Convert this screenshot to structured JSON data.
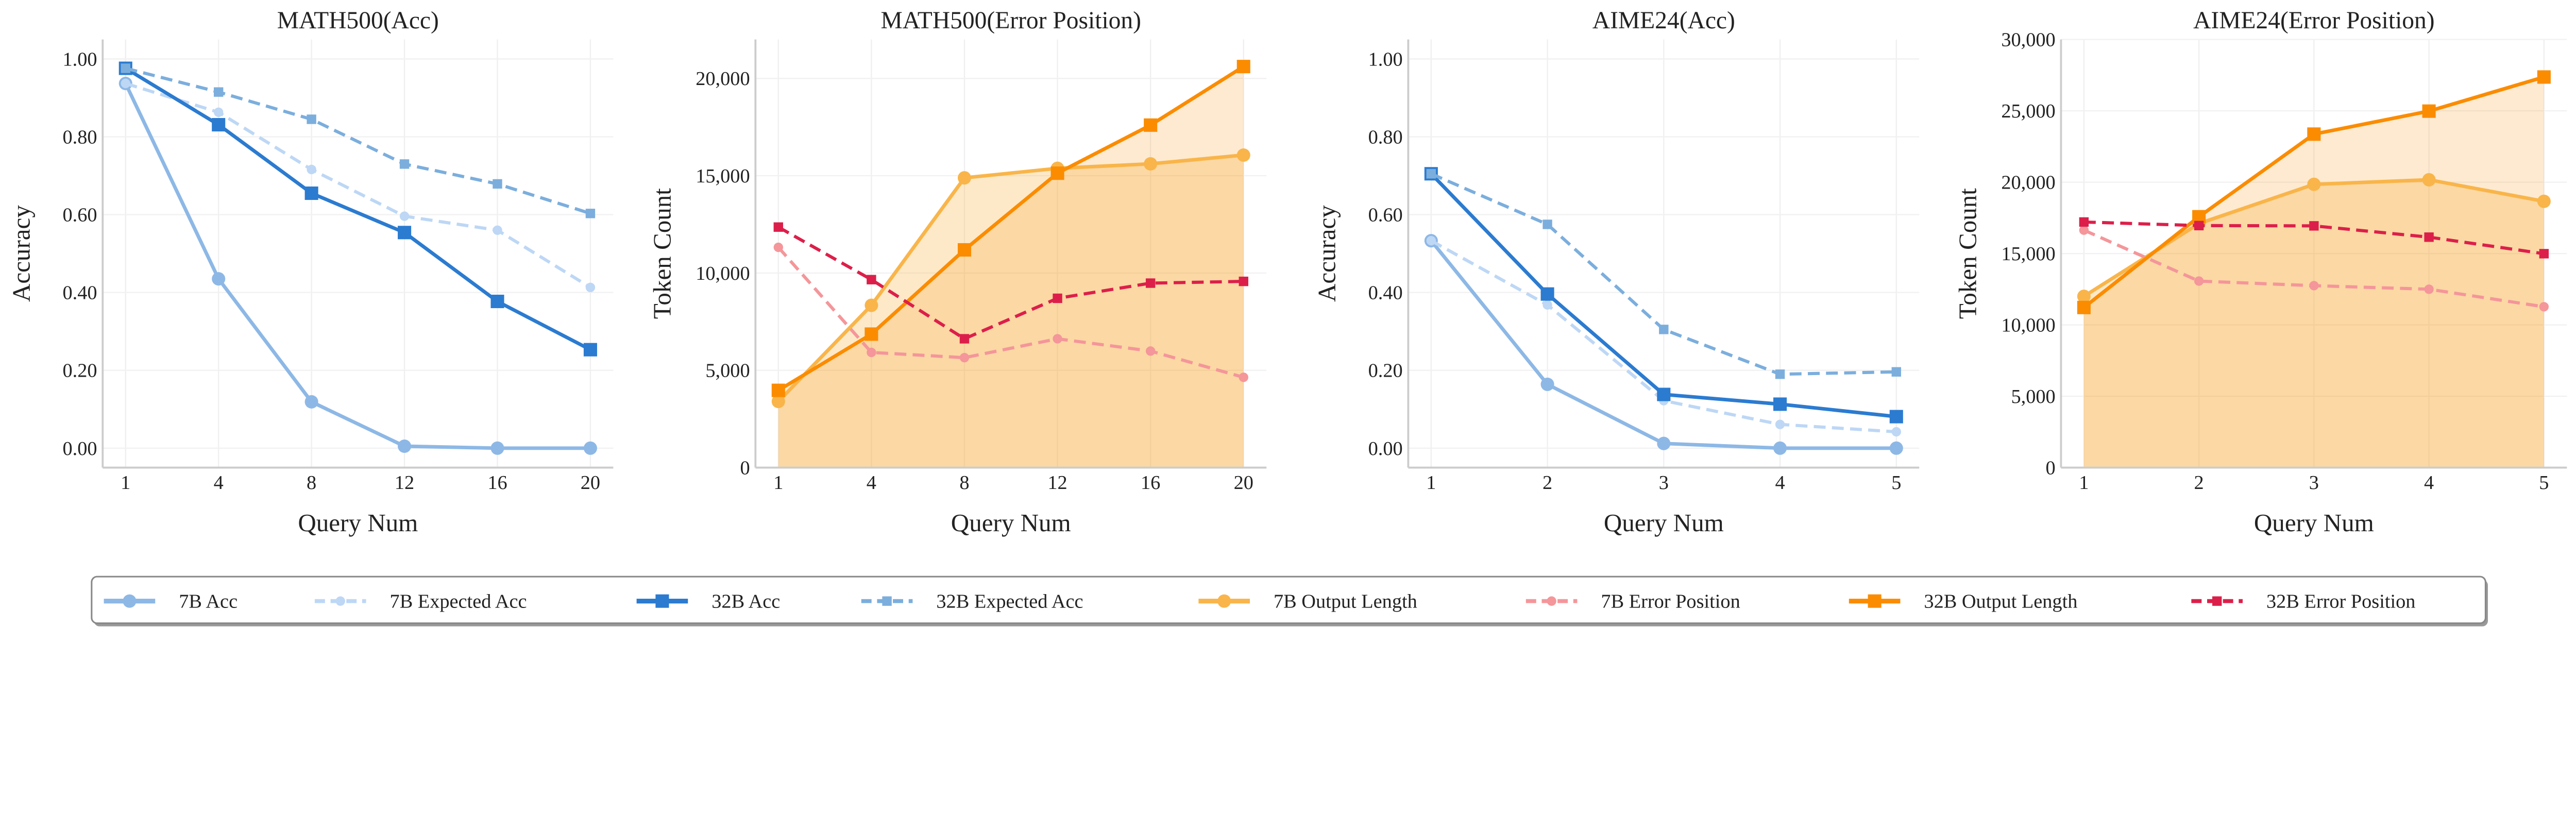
{
  "legend": [
    {
      "name": "7B Acc",
      "color": "#8DB8E6",
      "dash": false,
      "marker": "circle",
      "big": true
    },
    {
      "name": "7B Expected Acc",
      "color": "#BDD7F5",
      "dash": true,
      "marker": "circle",
      "big": false
    },
    {
      "name": "32B Acc",
      "color": "#2B7BD0",
      "dash": false,
      "marker": "square",
      "big": true
    },
    {
      "name": "32B Expected Acc",
      "color": "#7BAEDD",
      "dash": true,
      "marker": "square",
      "big": false
    },
    {
      "name": "7B Output Length",
      "color": "#F9B54A",
      "dash": false,
      "marker": "circle",
      "big": true
    },
    {
      "name": "7B Error Position",
      "color": "#F4969A",
      "dash": true,
      "marker": "circle",
      "big": false
    },
    {
      "name": "32B Output Length",
      "color": "#FB8C00",
      "dash": false,
      "marker": "square",
      "big": true
    },
    {
      "name": "32B Error Position",
      "color": "#DC1F4A",
      "dash": true,
      "marker": "square",
      "big": false
    }
  ],
  "chart_data": [
    {
      "type": "line",
      "title": "MATH500(Acc)",
      "xlabel": "Query Num",
      "ylabel": "Accuracy",
      "x": [
        1,
        4,
        8,
        12,
        16,
        20
      ],
      "xticks": [
        "1",
        "4",
        "8",
        "12",
        "16",
        "20"
      ],
      "ylim": [
        -0.05,
        1.05
      ],
      "yticks": [
        0,
        0.2,
        0.4,
        0.6,
        0.8,
        1.0
      ],
      "ytick_labels": [
        "0.00",
        "0.20",
        "0.40",
        "0.60",
        "0.80",
        "1.00"
      ],
      "grid": true,
      "series": [
        {
          "name": "7B Acc",
          "values": [
            0.937,
            0.435,
            0.119,
            0.005,
            0.0,
            0.0
          ]
        },
        {
          "name": "7B Expected Acc",
          "values": [
            0.937,
            0.863,
            0.716,
            0.596,
            0.56,
            0.413
          ]
        },
        {
          "name": "32B Acc",
          "values": [
            0.976,
            0.831,
            0.655,
            0.554,
            0.377,
            0.253
          ]
        },
        {
          "name": "32B Expected Acc",
          "values": [
            0.976,
            0.915,
            0.845,
            0.73,
            0.679,
            0.603
          ]
        }
      ]
    },
    {
      "type": "area",
      "title": "MATH500(Error Position)",
      "xlabel": "Query Num",
      "ylabel": "Token Count",
      "x": [
        1,
        4,
        8,
        12,
        16,
        20
      ],
      "xticks": [
        "1",
        "4",
        "8",
        "12",
        "16",
        "20"
      ],
      "ylim": [
        0,
        22000
      ],
      "yticks": [
        0,
        5000,
        10000,
        15000,
        20000
      ],
      "ytick_labels": [
        "0",
        "5,000",
        "10,000",
        "15,000",
        "20,000"
      ],
      "grid": true,
      "series": [
        {
          "name": "7B Output Length",
          "values": [
            3400,
            8340,
            14890,
            15380,
            15610,
            16060
          ],
          "fill": true
        },
        {
          "name": "7B Error Position",
          "values": [
            11320,
            5920,
            5650,
            6620,
            5990,
            4640
          ]
        },
        {
          "name": "32B Output Length",
          "values": [
            3970,
            6860,
            11190,
            15130,
            17600,
            20610
          ],
          "fill": true
        },
        {
          "name": "32B Error Position",
          "values": [
            12360,
            9660,
            6620,
            8700,
            9480,
            9570
          ]
        }
      ]
    },
    {
      "type": "line",
      "title": "AIME24(Acc)",
      "xlabel": "Query Num",
      "ylabel": "Accuracy",
      "x": [
        1,
        2,
        3,
        4,
        5
      ],
      "xticks": [
        "1",
        "2",
        "3",
        "4",
        "5"
      ],
      "ylim": [
        -0.05,
        1.05
      ],
      "yticks": [
        0,
        0.2,
        0.4,
        0.6,
        0.8,
        1.0
      ],
      "ytick_labels": [
        "0.00",
        "0.20",
        "0.40",
        "0.60",
        "0.80",
        "1.00"
      ],
      "grid": true,
      "series": [
        {
          "name": "7B Acc",
          "values": [
            0.533,
            0.164,
            0.012,
            0.0,
            0.0
          ]
        },
        {
          "name": "7B Expected Acc",
          "values": [
            0.533,
            0.368,
            0.122,
            0.061,
            0.042
          ]
        },
        {
          "name": "32B Acc",
          "values": [
            0.705,
            0.396,
            0.138,
            0.113,
            0.081
          ]
        },
        {
          "name": "32B Expected Acc",
          "values": [
            0.705,
            0.575,
            0.305,
            0.19,
            0.196
          ]
        }
      ]
    },
    {
      "type": "area",
      "title": "AIME24(Error Position)",
      "xlabel": "Query Num",
      "ylabel": "Token Count",
      "x": [
        1,
        2,
        3,
        4,
        5
      ],
      "xticks": [
        "1",
        "2",
        "3",
        "4",
        "5"
      ],
      "ylim": [
        0,
        30000
      ],
      "yticks": [
        0,
        5000,
        10000,
        15000,
        20000,
        25000,
        30000
      ],
      "ytick_labels": [
        "0",
        "5,000",
        "10,000",
        "15,000",
        "20,000",
        "25,000",
        "30,000"
      ],
      "grid": true,
      "series": [
        {
          "name": "7B Output Length",
          "values": [
            12000,
            17100,
            19850,
            20170,
            18660
          ],
          "fill": true
        },
        {
          "name": "7B Error Position",
          "values": [
            16640,
            13070,
            12750,
            12500,
            11270
          ]
        },
        {
          "name": "32B Output Length",
          "values": [
            11220,
            17580,
            23370,
            24980,
            27370
          ],
          "fill": true
        },
        {
          "name": "32B Error Position",
          "values": [
            17210,
            16960,
            16940,
            16150,
            14990
          ]
        }
      ]
    }
  ]
}
